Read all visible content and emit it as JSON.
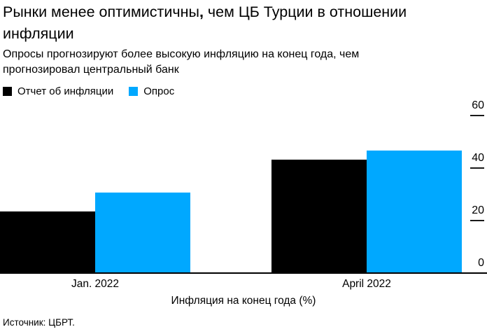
{
  "title": {
    "part1": "Рынки менее оптимистичны",
    "comma": ",",
    "part2": " чем ЦБ Турции в отношении инфляции"
  },
  "subtitle": "Опросы прогнозируют более высокую инфляцию на конец года, чем прогнозировал центральный банк",
  "legend": [
    {
      "label": "Отчет об инфляции",
      "color": "#000000"
    },
    {
      "label": "Опрос",
      "color": "#00a8ff"
    }
  ],
  "chart_data": {
    "type": "bar",
    "categories": [
      "Jan. 2022",
      "April 2022"
    ],
    "series": [
      {
        "name": "Отчет об инфляции",
        "color": "#000000",
        "values": [
          23.2,
          42.8
        ]
      },
      {
        "name": "Опрос",
        "color": "#00a8ff",
        "values": [
          30.5,
          46.4
        ]
      }
    ],
    "ylim": [
      0,
      60
    ],
    "yticks": [
      0,
      20,
      40,
      60
    ],
    "ytick_side": "right",
    "grid": false,
    "legend_position": "top-left",
    "xlabel": "Инфляция на конец года (%)",
    "ylabel": ""
  },
  "source": "Источник: ЦБРТ."
}
